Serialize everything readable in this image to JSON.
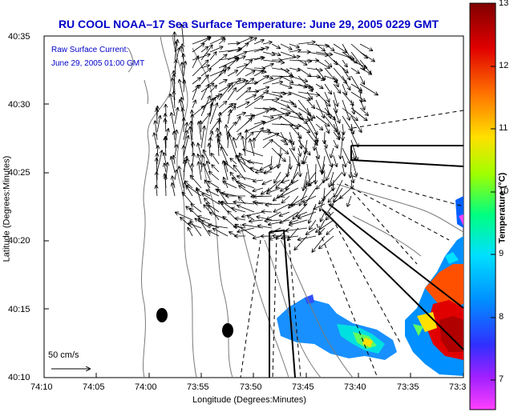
{
  "title": "RU COOL  NOAA–17  Sea Surface Temperature:  June 29, 2005 0229 GMT",
  "legend": {
    "line1": "Raw Surface Current:",
    "line2": "June 29, 2005 01:00 GMT"
  },
  "scale_label": "50 cm/s",
  "axes": {
    "xlabel": "Longitude (Degrees:Minutes)",
    "ylabel": "Latitude (Degrees:Minutes)",
    "x_ticks": [
      "74:10",
      "74:05",
      "74:00",
      "73:55",
      "73:50",
      "73:45",
      "73:40",
      "73:35",
      "73:3"
    ],
    "y_ticks": [
      "40:35",
      "40:30",
      "40:25",
      "40:20",
      "40:15",
      "40:10"
    ]
  },
  "colorbar": {
    "label": "Temperature (°C)",
    "ticks": [
      "13",
      "12",
      "11",
      "10",
      "9",
      "8",
      "7"
    ],
    "colors": [
      "#ff40ff",
      "#7000ff",
      "#0050ff",
      "#00c0ff",
      "#00ff80",
      "#c0ff00",
      "#ffd000",
      "#ff6000",
      "#e00000",
      "#800000"
    ]
  },
  "colors": {
    "title": "#0000c8",
    "land_outline": "#7a7a7a",
    "vectors": "#000000"
  }
}
